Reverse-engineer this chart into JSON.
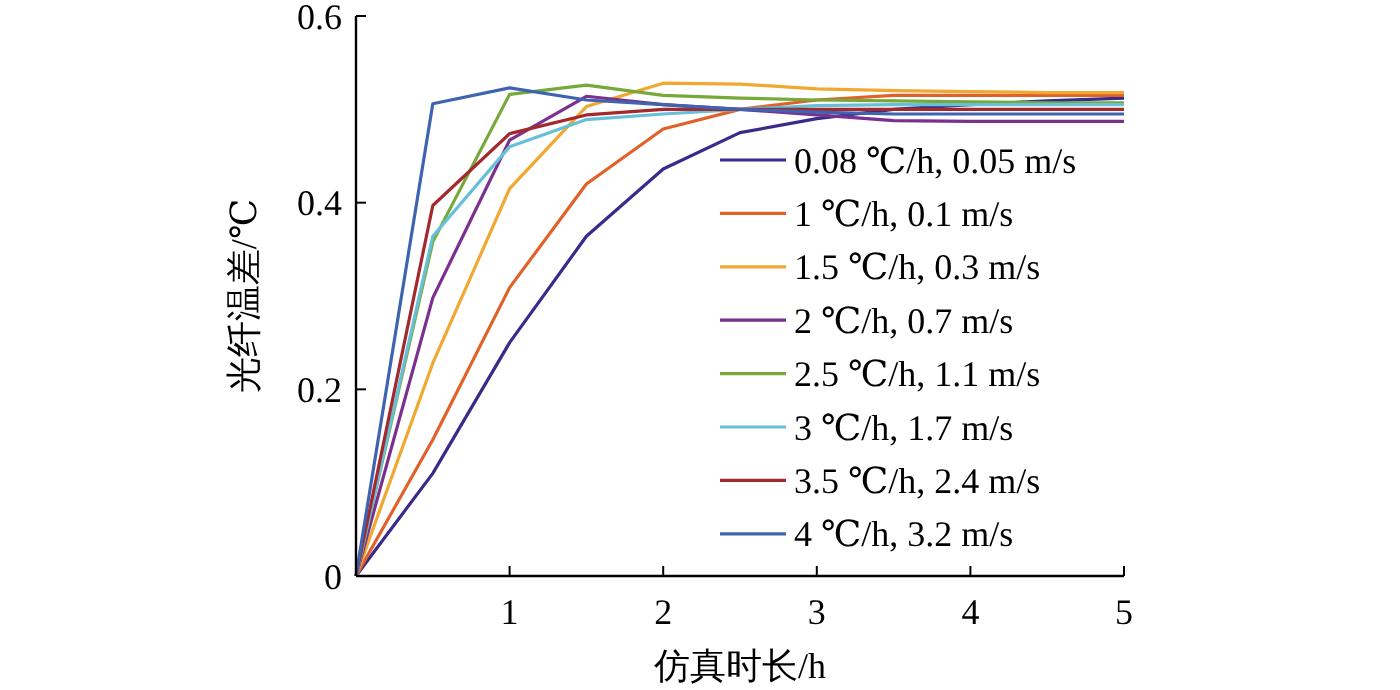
{
  "chart_data": {
    "type": "line",
    "xlabel": "仿真时长/h",
    "ylabel": "光纤温差/℃",
    "x": [
      0,
      0.5,
      1,
      1.5,
      2,
      2.5,
      3,
      3.5,
      4,
      4.5,
      5
    ],
    "xlim": [
      0,
      5
    ],
    "xticks": [
      1,
      2,
      3,
      4,
      5
    ],
    "ylim": [
      0,
      0.6
    ],
    "yticks": [
      0,
      0.2,
      0.4,
      0.6
    ],
    "legend": "right",
    "grid": false,
    "marker": "none",
    "line_style": "solid",
    "series": [
      {
        "name": "0.08 ℃/h, 0.05 m/s",
        "color": "#3a2a8a",
        "values": [
          0,
          0.11,
          0.25,
          0.364,
          0.436,
          0.475,
          0.49,
          0.5,
          0.505,
          0.509,
          0.512
        ]
      },
      {
        "name": "1 ℃/h, 0.1 m/s",
        "color": "#e0622a",
        "values": [
          0,
          0.146,
          0.309,
          0.42,
          0.479,
          0.5,
          0.51,
          0.515,
          0.515,
          0.515,
          0.515
        ]
      },
      {
        "name": "1.5 ℃/h, 0.3 m/s",
        "color": "#f0a830",
        "values": [
          0,
          0.228,
          0.415,
          0.503,
          0.528,
          0.527,
          0.522,
          0.52,
          0.519,
          0.518,
          0.518
        ]
      },
      {
        "name": "2 ℃/h, 0.7 m/s",
        "color": "#7b2f8e",
        "values": [
          0,
          0.298,
          0.467,
          0.514,
          0.505,
          0.5,
          0.494,
          0.488,
          0.487,
          0.487,
          0.487
        ]
      },
      {
        "name": "2.5 ℃/h, 1.1 m/s",
        "color": "#77a83a",
        "values": [
          0,
          0.358,
          0.516,
          0.526,
          0.515,
          0.512,
          0.51,
          0.509,
          0.508,
          0.507,
          0.507
        ]
      },
      {
        "name": "3 ℃/h, 1.7 m/s",
        "color": "#66c0d8",
        "values": [
          0,
          0.364,
          0.46,
          0.489,
          0.495,
          0.5,
          0.504,
          0.505,
          0.505,
          0.505,
          0.505
        ]
      },
      {
        "name": "3.5 ℃/h, 2.4 m/s",
        "color": "#a3292e",
        "values": [
          0,
          0.397,
          0.474,
          0.494,
          0.5,
          0.5,
          0.5,
          0.5,
          0.5,
          0.5,
          0.5
        ]
      },
      {
        "name": "4 ℃/h, 3.2 m/s",
        "color": "#3e64b0",
        "values": [
          0,
          0.506,
          0.523,
          0.51,
          0.505,
          0.5,
          0.497,
          0.495,
          0.495,
          0.495,
          0.495
        ]
      }
    ]
  }
}
